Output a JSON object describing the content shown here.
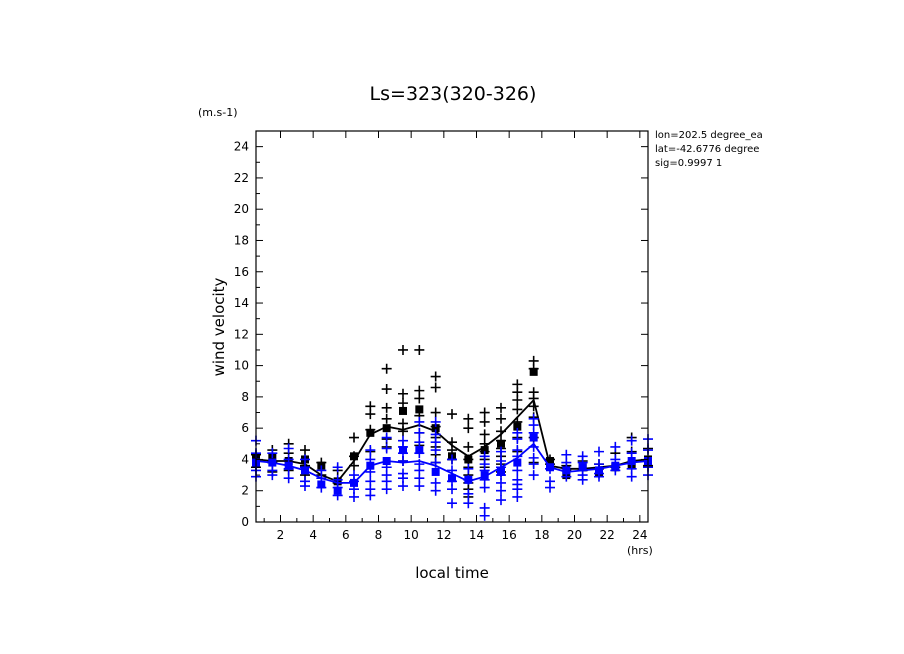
{
  "chart_data": {
    "type": "line",
    "title": "Ls=323(320-326)",
    "unit_label": "(m.s-1)",
    "xlabel": "local time",
    "x_unit": "(hrs)",
    "ylabel": "wind velocity",
    "xlim": [
      0.5,
      24.5
    ],
    "ylim": [
      0,
      25
    ],
    "xticks": [
      2,
      4,
      6,
      8,
      10,
      12,
      14,
      16,
      18,
      20,
      22,
      24
    ],
    "yticks": [
      0,
      2,
      4,
      6,
      8,
      10,
      12,
      14,
      16,
      18,
      20,
      22,
      24
    ],
    "grid": false,
    "legend": "none",
    "info_lines": [
      "lon=202.5 degree_ea",
      "lat=-42.6776 degree",
      "sig=0.9997 1"
    ],
    "series": [
      {
        "color": "#000000",
        "line": {
          "x": [
            0.5,
            1.5,
            2.5,
            3.5,
            4.5,
            5.5,
            6.5,
            7.5,
            8.5,
            9.5,
            10.5,
            11.5,
            12.5,
            13.5,
            14.5,
            15.5,
            16.5,
            17.5,
            18.5,
            19.5,
            20.5,
            21.5,
            22.5,
            23.5,
            24.5
          ],
          "y": [
            4.0,
            3.9,
            3.9,
            3.7,
            3.0,
            2.6,
            3.9,
            5.6,
            6.1,
            5.9,
            6.2,
            5.8,
            4.9,
            4.2,
            4.8,
            5.6,
            6.7,
            7.8,
            3.6,
            3.4,
            3.4,
            3.5,
            3.6,
            3.9,
            4.0
          ]
        },
        "means": [
          {
            "x": 0.5,
            "y": 4.0
          },
          {
            "x": 1.5,
            "y": 4.1
          },
          {
            "x": 2.5,
            "y": 3.9
          },
          {
            "x": 3.5,
            "y": 4.0
          },
          {
            "x": 4.5,
            "y": 3.6
          },
          {
            "x": 5.5,
            "y": 2.6
          },
          {
            "x": 6.5,
            "y": 4.2
          },
          {
            "x": 7.5,
            "y": 5.7
          },
          {
            "x": 8.5,
            "y": 6.0
          },
          {
            "x": 9.5,
            "y": 7.1
          },
          {
            "x": 10.5,
            "y": 7.2
          },
          {
            "x": 11.5,
            "y": 6.0
          },
          {
            "x": 12.5,
            "y": 4.2
          },
          {
            "x": 13.5,
            "y": 4.0
          },
          {
            "x": 14.5,
            "y": 4.6
          },
          {
            "x": 15.5,
            "y": 5.0
          },
          {
            "x": 16.5,
            "y": 6.1
          },
          {
            "x": 17.5,
            "y": 9.6
          },
          {
            "x": 18.5,
            "y": 3.9
          },
          {
            "x": 19.5,
            "y": 3.0
          },
          {
            "x": 20.5,
            "y": 3.5
          },
          {
            "x": 21.5,
            "y": 3.2
          },
          {
            "x": 22.5,
            "y": 3.5
          },
          {
            "x": 23.5,
            "y": 3.7
          },
          {
            "x": 24.5,
            "y": 4.0
          }
        ],
        "samples": [
          [
            0.5,
            4.3
          ],
          [
            0.5,
            3.5
          ],
          [
            1.5,
            4.6
          ],
          [
            1.5,
            3.8
          ],
          [
            1.5,
            3.2
          ],
          [
            2.5,
            5.0
          ],
          [
            2.5,
            4.4
          ],
          [
            2.5,
            3.3
          ],
          [
            3.5,
            4.6
          ],
          [
            3.5,
            3.6
          ],
          [
            3.5,
            3.0
          ],
          [
            4.5,
            3.8
          ],
          [
            4.5,
            3.0
          ],
          [
            5.5,
            3.3
          ],
          [
            5.5,
            2.5
          ],
          [
            6.5,
            5.4
          ],
          [
            6.5,
            4.2
          ],
          [
            6.5,
            3.6
          ],
          [
            7.5,
            7.4
          ],
          [
            7.5,
            6.9
          ],
          [
            7.5,
            5.9
          ],
          [
            7.5,
            4.5
          ],
          [
            8.5,
            9.8
          ],
          [
            8.5,
            8.5
          ],
          [
            8.5,
            7.3
          ],
          [
            8.5,
            6.6
          ],
          [
            8.5,
            5.3
          ],
          [
            8.5,
            4.8
          ],
          [
            9.5,
            11.0
          ],
          [
            9.5,
            8.2
          ],
          [
            9.5,
            7.6
          ],
          [
            9.5,
            6.3
          ],
          [
            9.5,
            5.8
          ],
          [
            9.5,
            3.9
          ],
          [
            10.5,
            11.0
          ],
          [
            10.5,
            8.4
          ],
          [
            10.5,
            7.9
          ],
          [
            10.5,
            6.8
          ],
          [
            10.5,
            5.7
          ],
          [
            10.5,
            4.9
          ],
          [
            11.5,
            9.3
          ],
          [
            11.5,
            8.6
          ],
          [
            11.5,
            7.0
          ],
          [
            11.5,
            6.1
          ],
          [
            11.5,
            5.4
          ],
          [
            11.5,
            4.8
          ],
          [
            11.5,
            4.3
          ],
          [
            11.5,
            3.8
          ],
          [
            12.5,
            6.9
          ],
          [
            12.5,
            5.1
          ],
          [
            12.5,
            4.6
          ],
          [
            12.5,
            4.0
          ],
          [
            13.5,
            6.6
          ],
          [
            13.5,
            6.0
          ],
          [
            13.5,
            4.8
          ],
          [
            13.5,
            4.0
          ],
          [
            13.5,
            3.5
          ],
          [
            13.5,
            3.0
          ],
          [
            13.5,
            2.5
          ],
          [
            13.5,
            2.1
          ],
          [
            13.5,
            1.6
          ],
          [
            14.5,
            7.0
          ],
          [
            14.5,
            6.4
          ],
          [
            14.5,
            5.6
          ],
          [
            14.5,
            5.0
          ],
          [
            14.5,
            4.5
          ],
          [
            14.5,
            4.0
          ],
          [
            14.5,
            3.5
          ],
          [
            15.5,
            7.3
          ],
          [
            15.5,
            6.6
          ],
          [
            15.5,
            5.8
          ],
          [
            15.5,
            5.2
          ],
          [
            15.5,
            4.7
          ],
          [
            15.5,
            4.2
          ],
          [
            15.5,
            3.7
          ],
          [
            15.5,
            3.2
          ],
          [
            16.5,
            8.8
          ],
          [
            16.5,
            8.3
          ],
          [
            16.5,
            7.8
          ],
          [
            16.5,
            7.2
          ],
          [
            16.5,
            6.4
          ],
          [
            16.5,
            5.4
          ],
          [
            16.5,
            4.5
          ],
          [
            17.5,
            10.3
          ],
          [
            17.5,
            9.8
          ],
          [
            17.5,
            8.3
          ],
          [
            17.5,
            7.9
          ],
          [
            17.5,
            7.4
          ],
          [
            17.5,
            6.7
          ],
          [
            17.5,
            5.4
          ],
          [
            17.5,
            3.8
          ],
          [
            18.5,
            4.0
          ],
          [
            18.5,
            3.7
          ],
          [
            19.5,
            3.6
          ],
          [
            19.5,
            3.3
          ],
          [
            20.5,
            3.9
          ],
          [
            20.5,
            3.3
          ],
          [
            21.5,
            3.7
          ],
          [
            21.5,
            3.4
          ],
          [
            22.5,
            4.4
          ],
          [
            22.5,
            3.5
          ],
          [
            23.5,
            5.4
          ],
          [
            23.5,
            4.5
          ],
          [
            24.5,
            4.7
          ],
          [
            24.5,
            3.6
          ]
        ]
      },
      {
        "color": "#0000ff",
        "line": {
          "x": [
            0.5,
            1.5,
            2.5,
            3.5,
            4.5,
            5.5,
            6.5,
            7.5,
            8.5,
            9.5,
            10.5,
            11.5,
            12.5,
            13.5,
            14.5,
            15.5,
            16.5,
            17.5,
            18.5,
            19.5,
            20.5,
            21.5,
            22.5,
            23.5,
            24.5
          ],
          "y": [
            3.9,
            3.8,
            3.6,
            3.3,
            2.8,
            2.5,
            2.5,
            3.6,
            3.9,
            3.8,
            3.9,
            3.6,
            3.1,
            2.6,
            2.9,
            3.5,
            4.1,
            5.0,
            3.5,
            3.2,
            3.3,
            3.4,
            3.6,
            3.8,
            3.9
          ]
        },
        "means": [
          {
            "x": 0.5,
            "y": 3.8
          },
          {
            "x": 1.5,
            "y": 3.8
          },
          {
            "x": 2.5,
            "y": 3.6
          },
          {
            "x": 3.5,
            "y": 3.3
          },
          {
            "x": 4.5,
            "y": 2.4
          },
          {
            "x": 5.5,
            "y": 2.0
          },
          {
            "x": 6.5,
            "y": 2.5
          },
          {
            "x": 7.5,
            "y": 3.6
          },
          {
            "x": 8.5,
            "y": 3.9
          },
          {
            "x": 9.5,
            "y": 4.6
          },
          {
            "x": 10.5,
            "y": 4.6
          },
          {
            "x": 11.5,
            "y": 3.2
          },
          {
            "x": 12.5,
            "y": 2.8
          },
          {
            "x": 13.5,
            "y": 2.7
          },
          {
            "x": 14.5,
            "y": 3.0
          },
          {
            "x": 15.5,
            "y": 3.2
          },
          {
            "x": 16.5,
            "y": 3.8
          },
          {
            "x": 17.5,
            "y": 5.4
          },
          {
            "x": 18.5,
            "y": 3.5
          },
          {
            "x": 19.5,
            "y": 3.3
          },
          {
            "x": 20.5,
            "y": 3.5
          },
          {
            "x": 21.5,
            "y": 3.3
          },
          {
            "x": 22.5,
            "y": 3.6
          },
          {
            "x": 23.5,
            "y": 3.9
          },
          {
            "x": 24.5,
            "y": 3.9
          }
        ],
        "samples": [
          [
            0.5,
            5.2
          ],
          [
            0.5,
            4.4
          ],
          [
            0.5,
            3.3
          ],
          [
            0.5,
            2.9
          ],
          [
            1.5,
            4.4
          ],
          [
            1.5,
            3.3
          ],
          [
            1.5,
            3.0
          ],
          [
            2.5,
            4.7
          ],
          [
            2.5,
            4.0
          ],
          [
            2.5,
            3.4
          ],
          [
            2.5,
            2.8
          ],
          [
            3.5,
            4.0
          ],
          [
            3.5,
            3.5
          ],
          [
            3.5,
            2.6
          ],
          [
            3.5,
            2.3
          ],
          [
            4.5,
            3.3
          ],
          [
            4.5,
            2.8
          ],
          [
            4.5,
            2.2
          ],
          [
            5.5,
            3.5
          ],
          [
            5.5,
            2.7
          ],
          [
            5.5,
            2.2
          ],
          [
            5.5,
            1.7
          ],
          [
            6.5,
            3.0
          ],
          [
            6.5,
            2.6
          ],
          [
            6.5,
            2.1
          ],
          [
            6.5,
            1.6
          ],
          [
            7.5,
            4.6
          ],
          [
            7.5,
            4.0
          ],
          [
            7.5,
            3.2
          ],
          [
            7.5,
            2.6
          ],
          [
            7.5,
            2.1
          ],
          [
            7.5,
            1.7
          ],
          [
            8.5,
            5.4
          ],
          [
            8.5,
            4.7
          ],
          [
            8.5,
            3.5
          ],
          [
            8.5,
            3.0
          ],
          [
            8.5,
            2.6
          ],
          [
            8.5,
            2.1
          ],
          [
            9.5,
            5.2
          ],
          [
            9.5,
            4.8
          ],
          [
            9.5,
            4.4
          ],
          [
            9.5,
            3.9
          ],
          [
            9.5,
            3.1
          ],
          [
            9.5,
            2.8
          ],
          [
            9.5,
            2.3
          ],
          [
            10.5,
            6.4
          ],
          [
            10.5,
            5.7
          ],
          [
            10.5,
            5.1
          ],
          [
            10.5,
            4.4
          ],
          [
            10.5,
            3.7
          ],
          [
            10.5,
            3.3
          ],
          [
            10.5,
            2.8
          ],
          [
            10.5,
            2.3
          ],
          [
            11.5,
            6.4
          ],
          [
            11.5,
            5.6
          ],
          [
            11.5,
            5.1
          ],
          [
            11.5,
            4.6
          ],
          [
            11.5,
            3.8
          ],
          [
            11.5,
            2.5
          ],
          [
            11.5,
            2.0
          ],
          [
            12.5,
            4.0
          ],
          [
            12.5,
            3.3
          ],
          [
            12.5,
            2.6
          ],
          [
            12.5,
            2.1
          ],
          [
            12.5,
            1.2
          ],
          [
            13.5,
            3.4
          ],
          [
            13.5,
            2.7
          ],
          [
            13.5,
            1.8
          ],
          [
            13.5,
            1.2
          ],
          [
            14.5,
            4.2
          ],
          [
            14.5,
            3.7
          ],
          [
            14.5,
            3.3
          ],
          [
            14.5,
            2.7
          ],
          [
            14.5,
            2.2
          ],
          [
            14.5,
            0.9
          ],
          [
            14.5,
            0.4
          ],
          [
            15.5,
            4.5
          ],
          [
            15.5,
            3.9
          ],
          [
            15.5,
            3.5
          ],
          [
            15.5,
            3.0
          ],
          [
            15.5,
            2.5
          ],
          [
            15.5,
            2.0
          ],
          [
            15.5,
            1.4
          ],
          [
            16.5,
            5.7
          ],
          [
            16.5,
            5.3
          ],
          [
            16.5,
            4.6
          ],
          [
            16.5,
            4.2
          ],
          [
            16.5,
            3.3
          ],
          [
            16.5,
            2.7
          ],
          [
            16.5,
            2.4
          ],
          [
            16.5,
            2.1
          ],
          [
            16.5,
            1.6
          ],
          [
            17.5,
            6.6
          ],
          [
            17.5,
            6.2
          ],
          [
            17.5,
            5.7
          ],
          [
            17.5,
            4.8
          ],
          [
            17.5,
            4.1
          ],
          [
            17.5,
            3.7
          ],
          [
            17.5,
            3.0
          ],
          [
            18.5,
            3.4
          ],
          [
            18.5,
            2.6
          ],
          [
            18.5,
            2.2
          ],
          [
            19.5,
            4.3
          ],
          [
            19.5,
            3.8
          ],
          [
            19.5,
            2.9
          ],
          [
            20.5,
            4.2
          ],
          [
            20.5,
            3.8
          ],
          [
            20.5,
            3.0
          ],
          [
            20.5,
            2.7
          ],
          [
            21.5,
            4.5
          ],
          [
            21.5,
            3.7
          ],
          [
            21.5,
            3.1
          ],
          [
            21.5,
            2.9
          ],
          [
            22.5,
            4.8
          ],
          [
            22.5,
            4.0
          ],
          [
            22.5,
            3.3
          ],
          [
            23.5,
            5.2
          ],
          [
            23.5,
            4.4
          ],
          [
            23.5,
            3.4
          ],
          [
            23.5,
            2.9
          ],
          [
            24.5,
            5.3
          ],
          [
            24.5,
            4.6
          ],
          [
            24.5,
            3.5
          ],
          [
            24.5,
            3.0
          ]
        ]
      }
    ]
  }
}
